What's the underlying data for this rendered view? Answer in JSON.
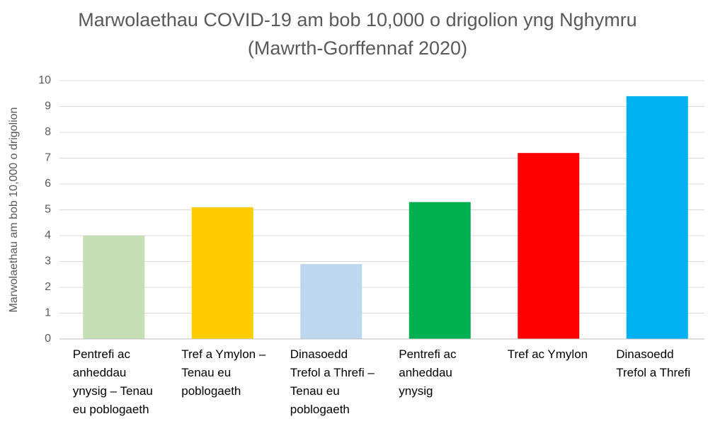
{
  "chart_data": {
    "type": "bar",
    "title": "Marwolaethau COVID-19 am bob 10,000 o drigolion yng Nghymru (Mawrth-Gorffennaf 2020)",
    "y_label": "Marwolaethau am bob 10,000 o drigolion",
    "categories": [
      "Pentrefi ac anheddau ynysig – Tenau eu poblogaeth",
      "Tref a Ymylon – Tenau eu poblogaeth",
      "Dinasoedd Trefol a Threfi – Tenau eu poblogaeth",
      "Pentrefi ac anheddau ynysig",
      "Tref ac Ymylon",
      "Dinasoedd Trefol a Threfi"
    ],
    "values": [
      4.0,
      5.1,
      2.9,
      5.3,
      7.2,
      9.4
    ],
    "colors": [
      "#c5e0b4",
      "#ffcc00",
      "#bdd7ee",
      "#00b050",
      "#ff0000",
      "#00b0f0"
    ],
    "ylim": [
      0,
      10
    ],
    "yticks": [
      0,
      1,
      2,
      3,
      4,
      5,
      6,
      7,
      8,
      9,
      10
    ],
    "grid": true
  }
}
